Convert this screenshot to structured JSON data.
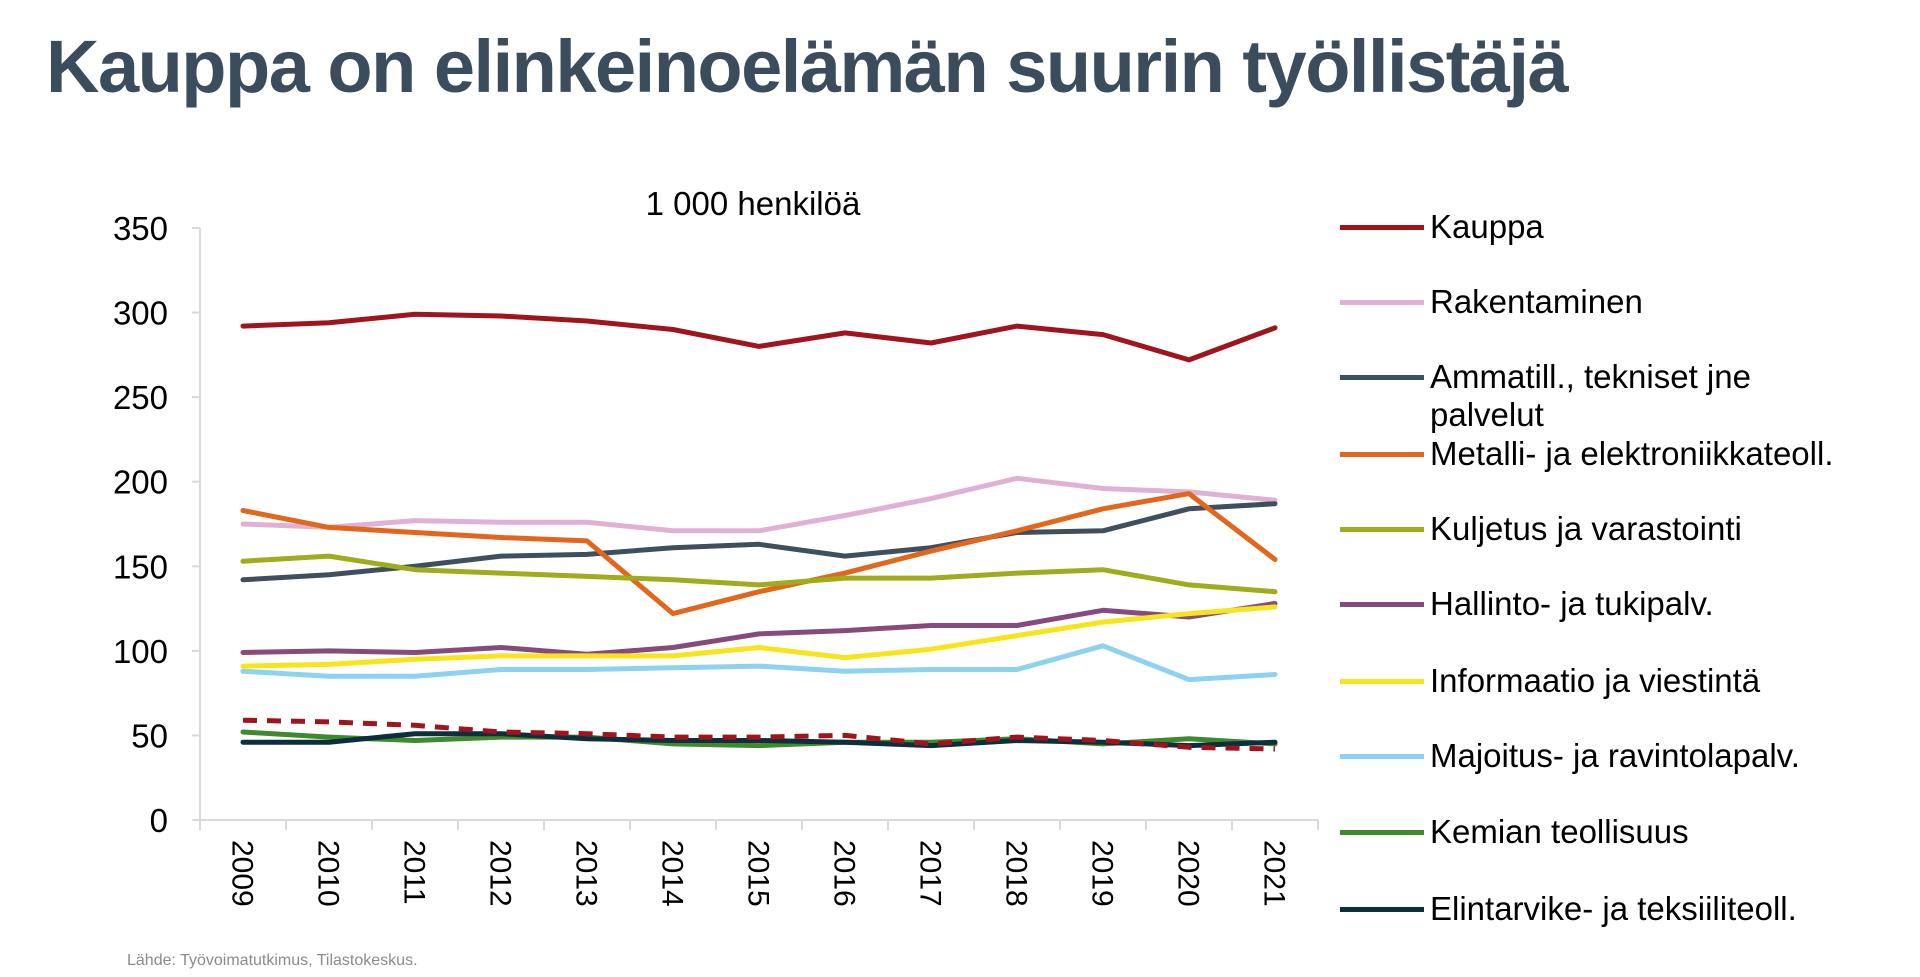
{
  "slide": {
    "title": "Kauppa on elinkeinoelämän suurin työllistäjä",
    "source": "Lähde: Työvoimatutkimus, Tilastokeskus."
  },
  "chart_data": {
    "type": "line",
    "subtitle": "1 000 henkilöä",
    "ylim": [
      0,
      350
    ],
    "yticks": [
      "0",
      "50",
      "100",
      "150",
      "200",
      "250",
      "300",
      "350"
    ],
    "categories": [
      "2009",
      "2010",
      "2011",
      "2012",
      "2013",
      "2014",
      "2015",
      "2016",
      "2017",
      "2018",
      "2019",
      "2020",
      "2021"
    ],
    "grid": false,
    "legend_position": "right",
    "series": [
      {
        "name": "Kauppa",
        "color": "#a0141e",
        "dashed": false,
        "values": [
          292,
          294,
          299,
          298,
          295,
          290,
          280,
          288,
          282,
          292,
          287,
          272,
          291
        ]
      },
      {
        "name": "Rakentaminen",
        "color": "#e0b1d4",
        "dashed": false,
        "values": [
          175,
          173,
          177,
          176,
          176,
          171,
          171,
          180,
          190,
          202,
          196,
          194,
          189
        ]
      },
      {
        "name": "Ammatill., tekniset jne palvelut",
        "color": "#3f4f5e",
        "dashed": false,
        "values": [
          142,
          145,
          150,
          156,
          157,
          161,
          163,
          156,
          161,
          170,
          171,
          184,
          187
        ]
      },
      {
        "name": "Metalli- ja elektroniikkateoll.",
        "color": "#e2661b",
        "dashed": false,
        "values": [
          183,
          173,
          170,
          167,
          165,
          122,
          135,
          146,
          159,
          171,
          184,
          193,
          154
        ]
      },
      {
        "name": "Kuljetus ja varastointi",
        "color": "#9fac1c",
        "dashed": false,
        "values": [
          153,
          156,
          148,
          146,
          144,
          142,
          139,
          143,
          143,
          146,
          148,
          139,
          135
        ]
      },
      {
        "name": "Hallinto- ja tukipalv.",
        "color": "#874a7e",
        "dashed": false,
        "values": [
          99,
          100,
          99,
          102,
          98,
          102,
          110,
          112,
          115,
          115,
          124,
          120,
          128
        ]
      },
      {
        "name": "Informaatio ja viestintä",
        "color": "#f5e51a",
        "dashed": false,
        "values": [
          91,
          92,
          95,
          97,
          97,
          97,
          102,
          96,
          101,
          109,
          117,
          122,
          126
        ]
      },
      {
        "name": "Majoitus- ja ravintolapalv.",
        "color": "#8dd2ef",
        "dashed": false,
        "values": [
          88,
          85,
          85,
          89,
          89,
          90,
          91,
          88,
          89,
          89,
          103,
          83,
          86
        ]
      },
      {
        "name": "Kemian teollisuus",
        "color": "#3f8a2d",
        "dashed": false,
        "values": [
          52,
          49,
          47,
          49,
          49,
          45,
          44,
          46,
          46,
          48,
          45,
          48,
          45
        ]
      },
      {
        "name": "Elintarvike- ja teksiiliteoll.",
        "color": "#0d2e3c",
        "dashed": false,
        "values": [
          46,
          46,
          51,
          51,
          48,
          47,
          47,
          46,
          44,
          47,
          46,
          44,
          46
        ]
      },
      {
        "name": "",
        "color": "#a0141e",
        "dashed": true,
        "values": [
          59,
          58,
          56,
          52,
          51,
          49,
          49,
          50,
          45,
          49,
          47,
          43,
          42
        ]
      }
    ]
  }
}
